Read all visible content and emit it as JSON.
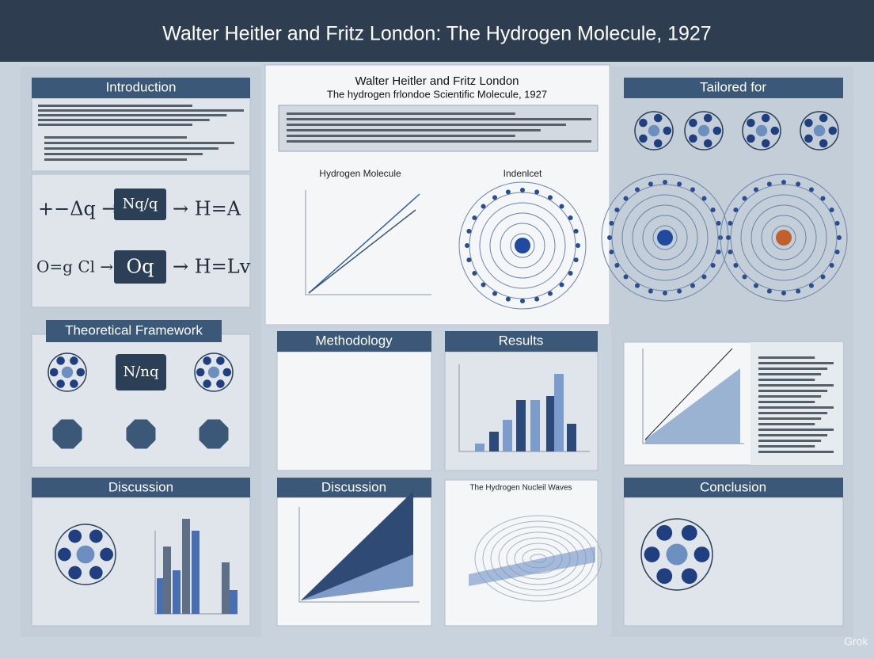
{
  "header": {
    "title": "Walter Heitler and Fritz London: The Hydrogen Molecule, 1927"
  },
  "sections": {
    "introduction": "Introduction",
    "framework": "Theoretical Framework",
    "discussion_left": "Discussion",
    "methodology": "Methodology",
    "results": "Results",
    "discussion_center": "Discussion",
    "tailored": "Tailored for",
    "conclusion": "Conclusion"
  },
  "center": {
    "heading": "Walter Heitler and Fritz London",
    "subheading": "The hydrogen frlondoe Scientific Molecule, 1927"
  },
  "charts": {
    "line": "Hydrogen Molecule",
    "radial": "Indenlcet",
    "waves": "The Hydrogen Nucleil Waves"
  },
  "equations": {
    "a": "+−Δq →",
    "b": "Nq/q",
    "c": "→ H=A",
    "d": "O=g Cl →",
    "e": "Oq",
    "f": "→ H=Lv",
    "g": "N/nq"
  },
  "watermark": "Grok"
}
